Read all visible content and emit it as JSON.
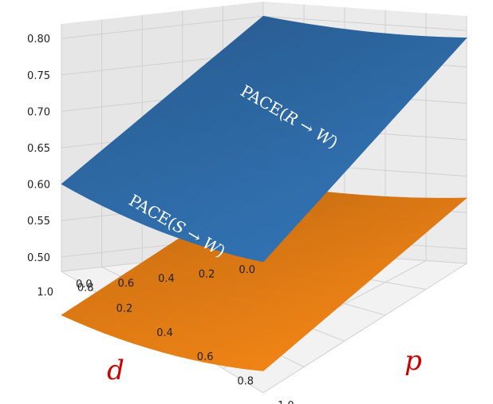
{
  "chart_data": {
    "type": "surface",
    "xlabel": "p",
    "ylabel": "d",
    "x_ticks": [
      "0.0",
      "0.2",
      "0.4",
      "0.6",
      "0.8",
      "1.0"
    ],
    "y_ticks": [
      "0.0",
      "0.2",
      "0.4",
      "0.6",
      "0.8",
      "1.0"
    ],
    "z_ticks": [
      "0.50",
      "0.55",
      "0.60",
      "0.65",
      "0.70",
      "0.75",
      "0.80"
    ],
    "xlim": [
      0,
      1
    ],
    "ylim": [
      0,
      1
    ],
    "zlim": [
      0.48,
      0.82
    ],
    "grid": true,
    "series": [
      {
        "label": "PACE(R → W)",
        "label_math": [
          "PACE(",
          "R",
          " → ",
          "W",
          ")"
        ],
        "color": "#2e6aa6",
        "corners": {
          "p0_d0": 0.8,
          "p1_d0": 0.79,
          "p0_d1": 0.6,
          "p1_d1": 0.66
        }
      },
      {
        "label": "PACE(S → W)",
        "label_math": [
          "PACE(",
          "S",
          " → ",
          "W",
          ")"
        ],
        "color": "#e07b14",
        "corners": {
          "p0_d0": 0.57,
          "p1_d0": 0.57,
          "p0_d1": 0.42,
          "p1_d1": 0.51
        }
      }
    ]
  }
}
